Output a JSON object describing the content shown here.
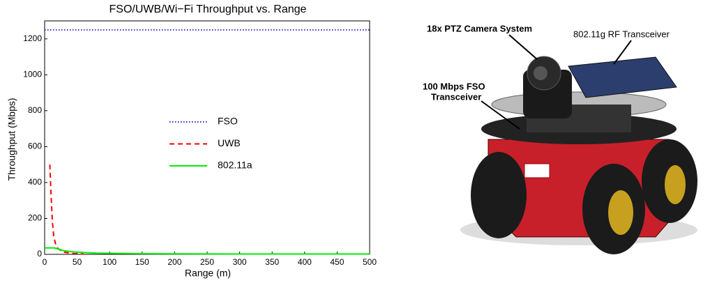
{
  "chart_data": {
    "type": "line",
    "title": "FSO/UWB/Wi−Fi Throughput vs. Range",
    "x_label": "Range (m)",
    "y_label": "Throughput (Mbps)",
    "xlim": [
      0,
      500
    ],
    "ylim": [
      0,
      1300
    ],
    "xticks": [
      0,
      50,
      100,
      150,
      200,
      250,
      300,
      350,
      400,
      450,
      500
    ],
    "yticks": [
      0,
      200,
      400,
      600,
      800,
      1000,
      1200
    ],
    "grid": false,
    "legend": "center",
    "series": [
      {
        "name": "FSO",
        "color": "#3333cc",
        "style": "dotted",
        "x": [
          0,
          500
        ],
        "values": [
          1250,
          1250
        ]
      },
      {
        "name": "UWB",
        "color": "#ff0000",
        "style": "dashed",
        "x": [
          8,
          10,
          12,
          14,
          17,
          20,
          25,
          30,
          40,
          50,
          60
        ],
        "values": [
          500,
          320,
          180,
          100,
          55,
          35,
          20,
          12,
          6,
          3,
          2
        ]
      },
      {
        "name": "802.11a",
        "color": "#00ee00",
        "style": "solid",
        "x": [
          0,
          15,
          20,
          30,
          40,
          60,
          80,
          100,
          150,
          200,
          300,
          500
        ],
        "values": [
          36,
          36,
          30,
          20,
          15,
          10,
          7,
          6,
          4,
          3,
          2,
          2
        ]
      }
    ]
  },
  "photo": {
    "labels": [
      "18x PTZ Camera System",
      "802.11g RF Transceiver",
      "100 Mbps FSO",
      "Transceiver"
    ]
  }
}
